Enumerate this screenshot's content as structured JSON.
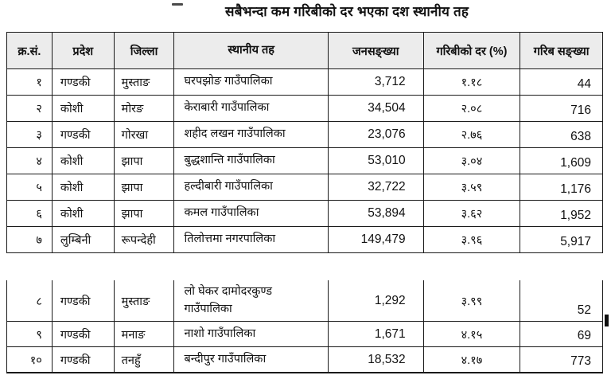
{
  "title": "सबैभन्दा कम गरिबीको दर भएका दश स्थानीय तह",
  "colors": {
    "header_bg": "#ececec",
    "border": "#1a1a1a",
    "text": "#111111"
  },
  "table": {
    "headers": [
      "क्र.सं.",
      "प्रदेश",
      "जिल्ला",
      "स्थानीय तह",
      "जनसङ्ख्या",
      "गरिबीको दर (%)",
      "गरिब सङ्ख्या"
    ],
    "rows": [
      {
        "sn": "१",
        "province": "गण्डकी",
        "district": "मुस्ताङ",
        "local_level": "घरपझोङ गाउँपालिका",
        "population": "3,712",
        "poverty_rate": "१.१८",
        "poor_count": "44"
      },
      {
        "sn": "२",
        "province": "कोशी",
        "district": "मोरङ",
        "local_level": "केराबारी गाउँपालिका",
        "population": "34,504",
        "poverty_rate": "२.०८",
        "poor_count": "716"
      },
      {
        "sn": "३",
        "province": "गण्डकी",
        "district": "गोरखा",
        "local_level": "शहीद लखन गाउँपालिका",
        "population": "23,076",
        "poverty_rate": "२.७६",
        "poor_count": "638"
      },
      {
        "sn": "४",
        "province": "कोशी",
        "district": "झापा",
        "local_level": "बुद्धशान्ति गाउँपालिका",
        "population": "53,010",
        "poverty_rate": "३.०४",
        "poor_count": "1,609"
      },
      {
        "sn": "५",
        "province": "कोशी",
        "district": "झापा",
        "local_level": "हल्दीबारी गाउँपालिका",
        "population": "32,722",
        "poverty_rate": "३.५९",
        "poor_count": "1,176"
      },
      {
        "sn": "६",
        "province": "कोशी",
        "district": "झापा",
        "local_level": "कमल गाउँपालिका",
        "population": "53,894",
        "poverty_rate": "३.६२",
        "poor_count": "1,952"
      },
      {
        "sn": "७",
        "province": "लुम्बिनी",
        "district": "रूपन्देही",
        "local_level": "तिलोत्तमा नगरपालिका",
        "population": "149,479",
        "poverty_rate": "३.९६",
        "poor_count": "5,917"
      }
    ],
    "rows_continued": [
      {
        "sn": "८",
        "province": "गण्डकी",
        "district": "मुस्ताङ",
        "local_level": "लो घेकर दामोदरकुण्ड गाउँपालिका",
        "population": "1,292",
        "poverty_rate": "३.९९",
        "poor_count": "52"
      },
      {
        "sn": "९",
        "province": "गण्डकी",
        "district": "मनाङ",
        "local_level": "नाशो गाउँपालिका",
        "population": "1,671",
        "poverty_rate": "४.१५",
        "poor_count": "69"
      },
      {
        "sn": "१०",
        "province": "गण्डकी",
        "district": "तनहुँ",
        "local_level": "बन्दीपुर गाउँपालिका",
        "population": "18,532",
        "poverty_rate": "४.१७",
        "poor_count": "773"
      }
    ]
  }
}
